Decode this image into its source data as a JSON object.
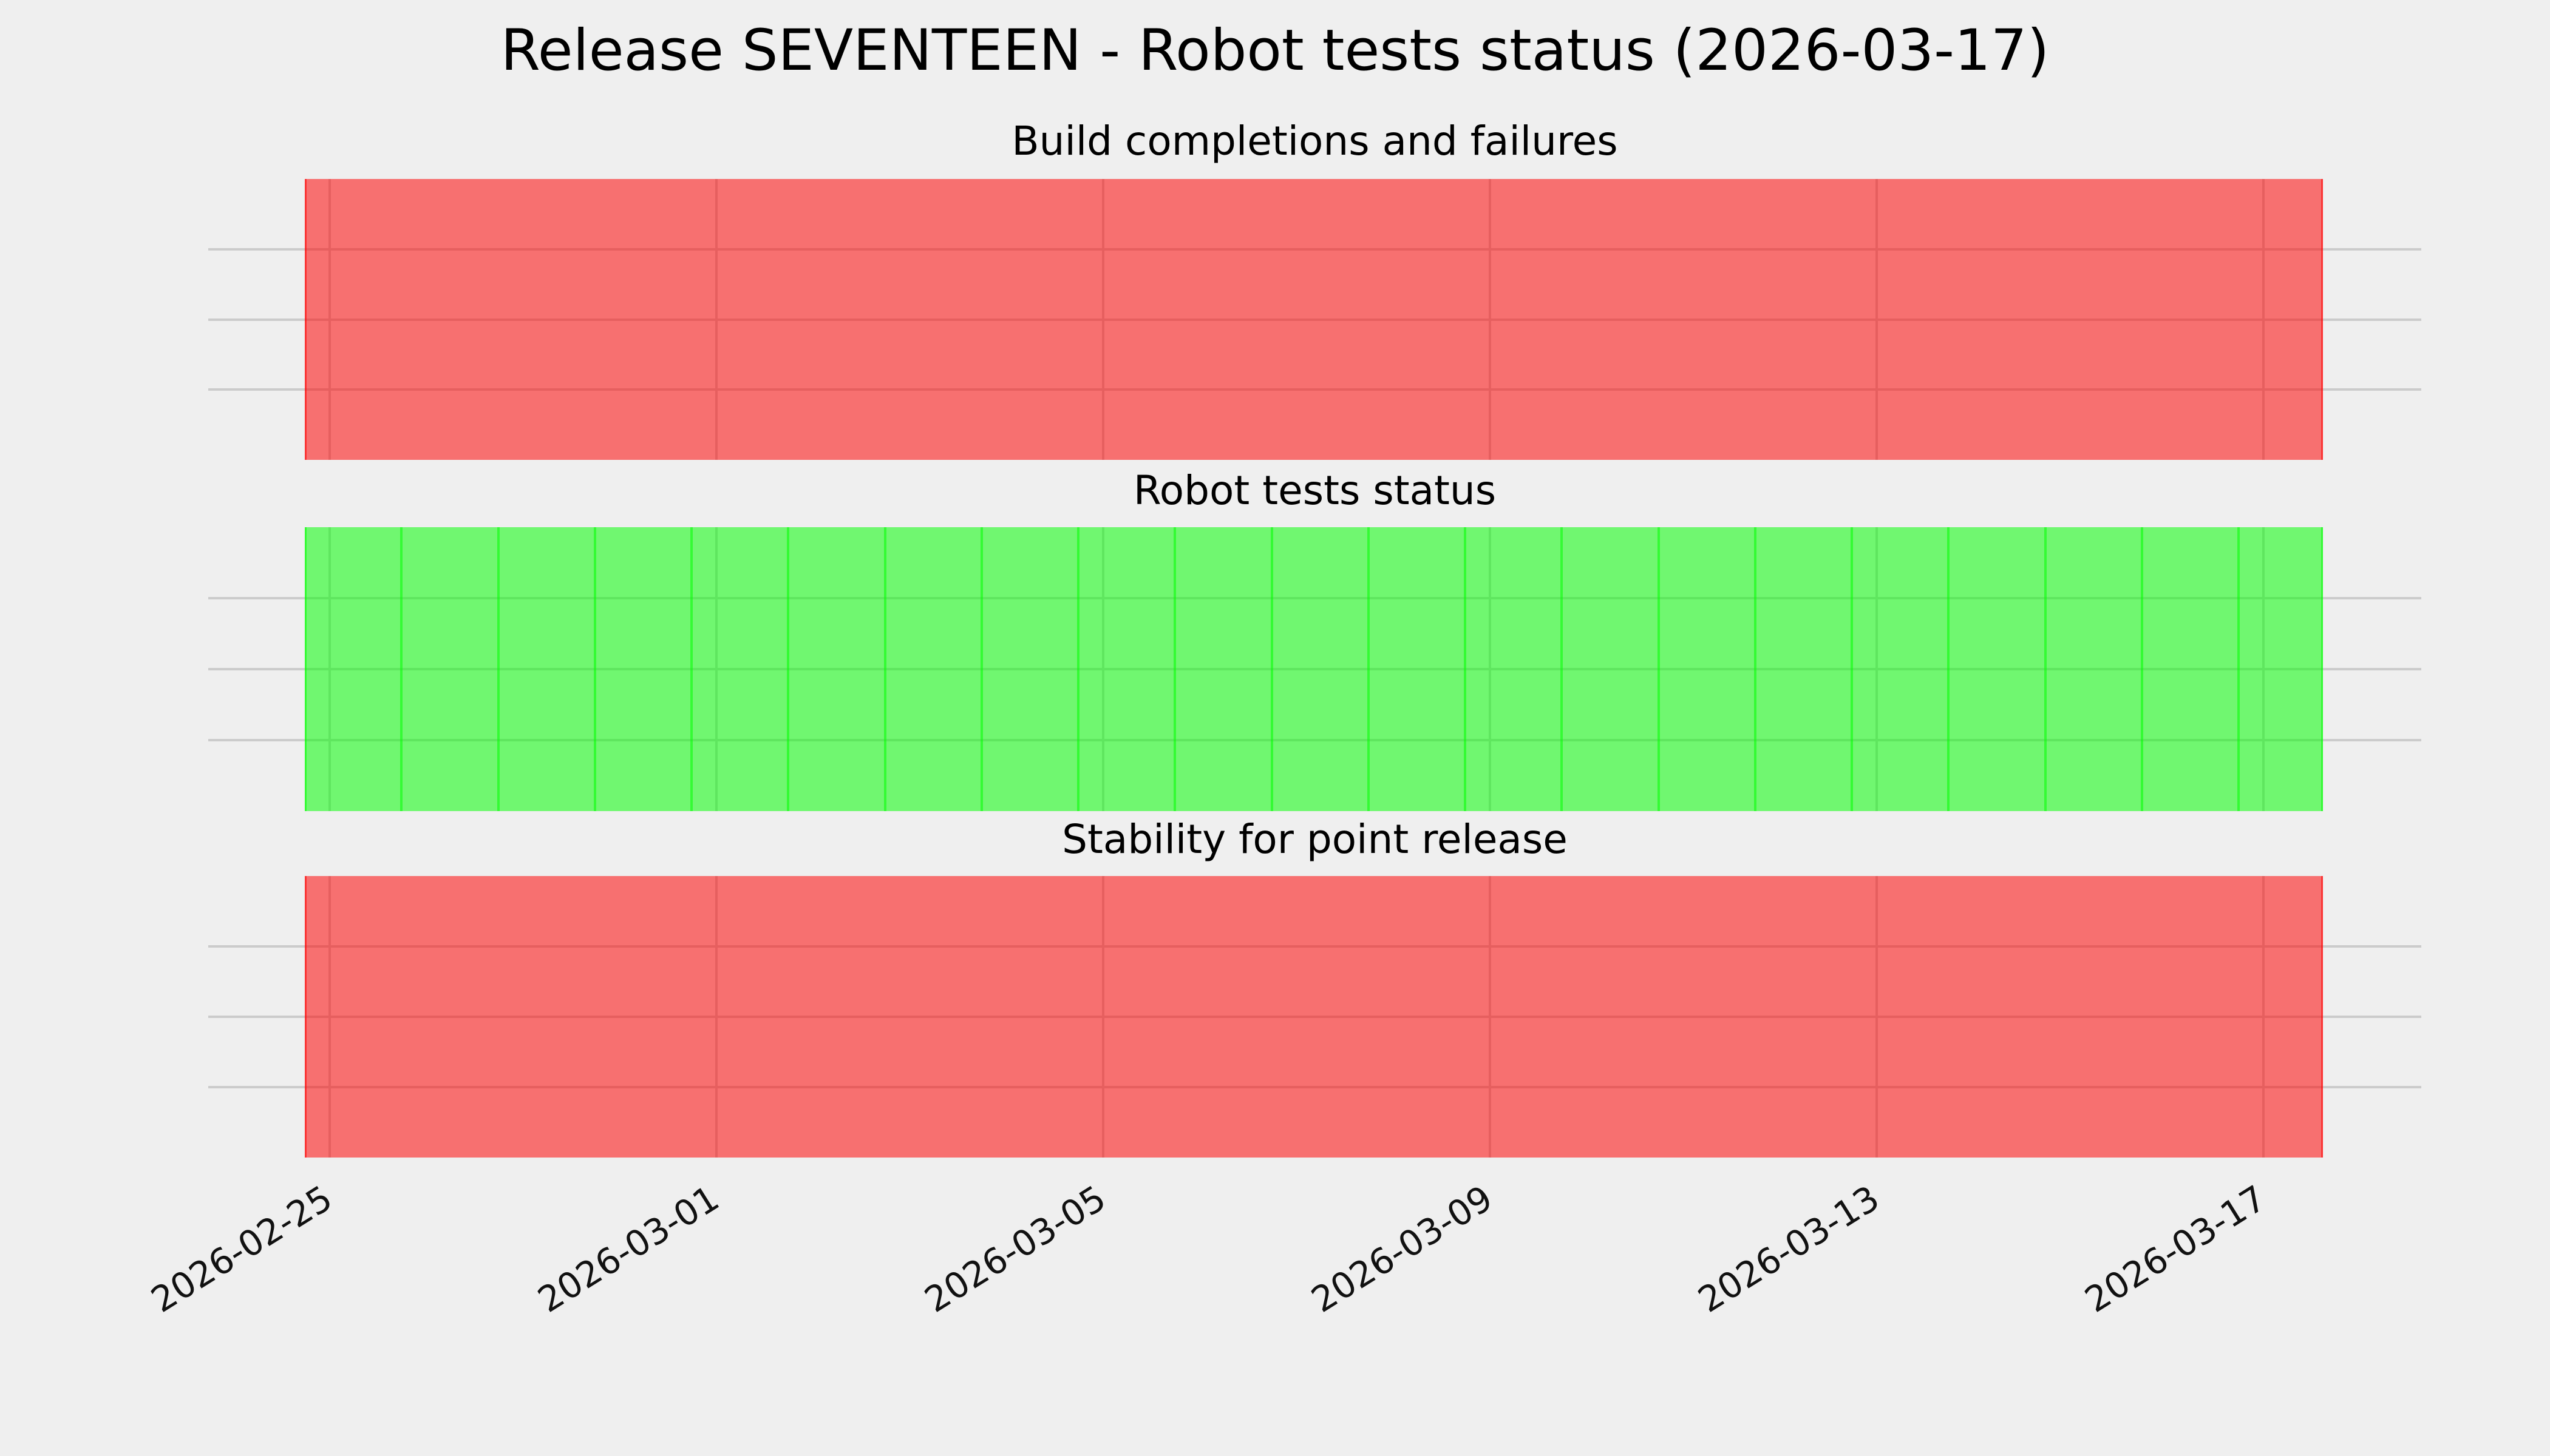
{
  "title": "Release SEVENTEEN - Robot tests status (2026-03-17)",
  "panels": [
    {
      "subtitle": "Build completions and failures",
      "status": "failing",
      "fill_color": "#ff0000",
      "daily_segment_lines": false
    },
    {
      "subtitle": "Robot tests status",
      "status": "passing",
      "fill_color": "#00ff00",
      "daily_segment_lines": true
    },
    {
      "subtitle": "Stability for point release",
      "status": "failing",
      "fill_color": "#ff0000",
      "daily_segment_lines": false
    }
  ],
  "x_axis": {
    "tick_labels": [
      "2026-02-25",
      "2026-03-01",
      "2026-03-05",
      "2026-03-09",
      "2026-03-13",
      "2026-03-17"
    ],
    "tick_interval_days": 4,
    "label_rotation_deg": 32
  },
  "colors": {
    "background": "#efefef",
    "gridline": "#cbcbcb",
    "fail_fill": "#ff0000",
    "pass_fill": "#00ff00",
    "fill_alpha": 0.53,
    "text": "#000000"
  },
  "chart_data": {
    "type": "heatmap",
    "title": "Release SEVENTEEN - Robot tests status (2026-03-17)",
    "x_ticks": [
      "2026-02-25",
      "2026-03-01",
      "2026-03-05",
      "2026-03-09",
      "2026-03-13",
      "2026-03-17"
    ],
    "x_range": [
      "2026-02-24",
      "2026-03-17"
    ],
    "rows": [
      {
        "label": "Build completions and failures",
        "status": "failing",
        "value": 0,
        "color": "#ff0000"
      },
      {
        "label": "Robot tests status",
        "status": "passing",
        "value": 1,
        "color": "#00ff00"
      },
      {
        "label": "Stability for point release",
        "status": "failing",
        "value": 0,
        "color": "#ff0000"
      }
    ],
    "grid": true,
    "legend": "none",
    "notes": "Three full-width status bands over the date range; green band shows daily segment boundaries, red bands are continuous."
  }
}
